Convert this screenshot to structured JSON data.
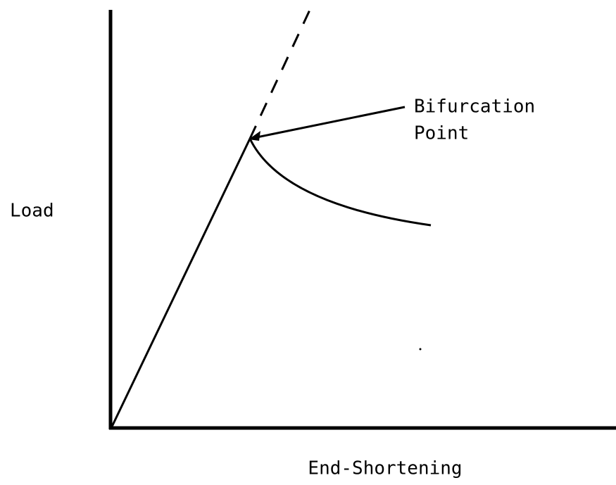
{
  "labels": {
    "y_axis": "Load",
    "x_axis": "End-Shortening",
    "annotation": [
      "Bifurcation",
      "Point"
    ]
  }
}
